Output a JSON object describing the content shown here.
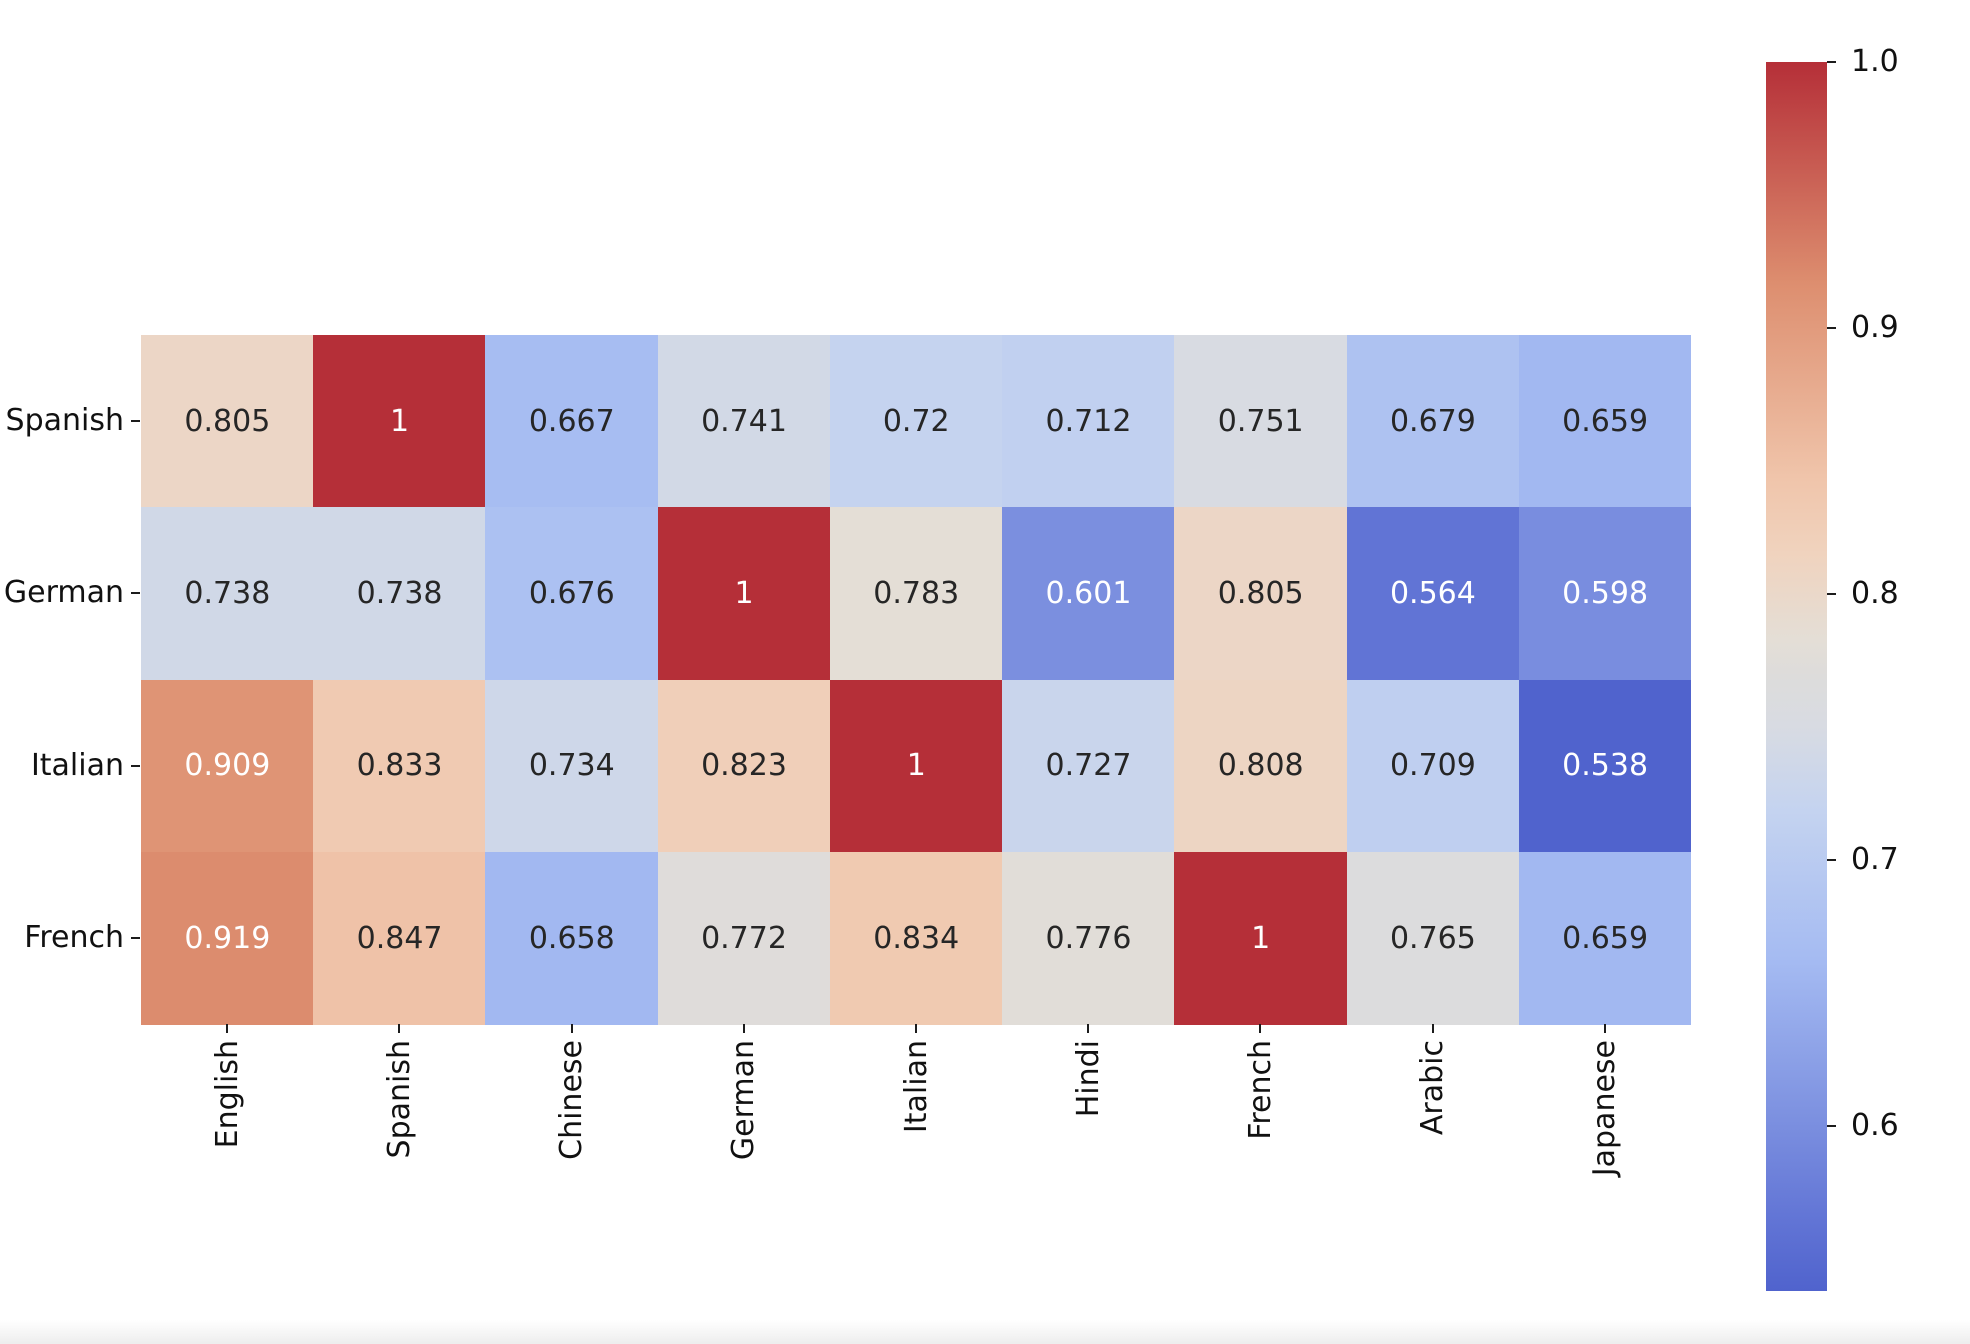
{
  "figure": {
    "background": "#ffffff",
    "annotation_dark_text": "#262626",
    "annotation_light_text": "#ffffff",
    "tick_color": "#1c1c1c"
  },
  "chart_data": {
    "type": "heatmap",
    "title": "",
    "xlabel": "",
    "ylabel": "",
    "x_categories": [
      "English",
      "Spanish",
      "Chinese",
      "German",
      "Italian",
      "Hindi",
      "French",
      "Arabic",
      "Japanese"
    ],
    "y_categories": [
      "Spanish",
      "German",
      "Italian",
      "French"
    ],
    "values": [
      [
        0.805,
        1,
        0.667,
        0.741,
        0.72,
        0.712,
        0.751,
        0.679,
        0.659
      ],
      [
        0.738,
        0.738,
        0.676,
        1,
        0.783,
        0.601,
        0.805,
        0.564,
        0.598
      ],
      [
        0.909,
        0.833,
        0.734,
        0.823,
        1,
        0.727,
        0.808,
        0.709,
        0.538
      ],
      [
        0.919,
        0.847,
        0.658,
        0.772,
        0.834,
        0.776,
        1,
        0.765,
        0.659
      ]
    ],
    "annotated": true,
    "grid": false,
    "legend_position": "right-colorbar",
    "colorbar": {
      "ticks": [
        "1.0",
        "0.9",
        "0.8",
        "0.7",
        "0.6"
      ],
      "tick_values": [
        1.0,
        0.9,
        0.8,
        0.7,
        0.6
      ],
      "vmin": 0.538,
      "vmax": 1.0
    },
    "colormap": {
      "name": "coolwarm",
      "anchors": [
        {
          "t": 0.0,
          "color": "#5063CD"
        },
        {
          "t": 0.056,
          "color": "#6174D5"
        },
        {
          "t": 0.133,
          "color": "#7A8EDF"
        },
        {
          "t": 0.27,
          "color": "#A5BBF2"
        },
        {
          "t": 0.39,
          "color": "#C4D3F0"
        },
        {
          "t": 0.46,
          "color": "#D8DBE2"
        },
        {
          "t": 0.5,
          "color": "#DDDCDB"
        },
        {
          "t": 0.53,
          "color": "#E4DED6"
        },
        {
          "t": 0.6,
          "color": "#F0D3BE"
        },
        {
          "t": 0.66,
          "color": "#F0C5AB"
        },
        {
          "t": 0.82,
          "color": "#DD8E6F"
        },
        {
          "t": 1.0,
          "color": "#B52F38"
        }
      ]
    }
  }
}
